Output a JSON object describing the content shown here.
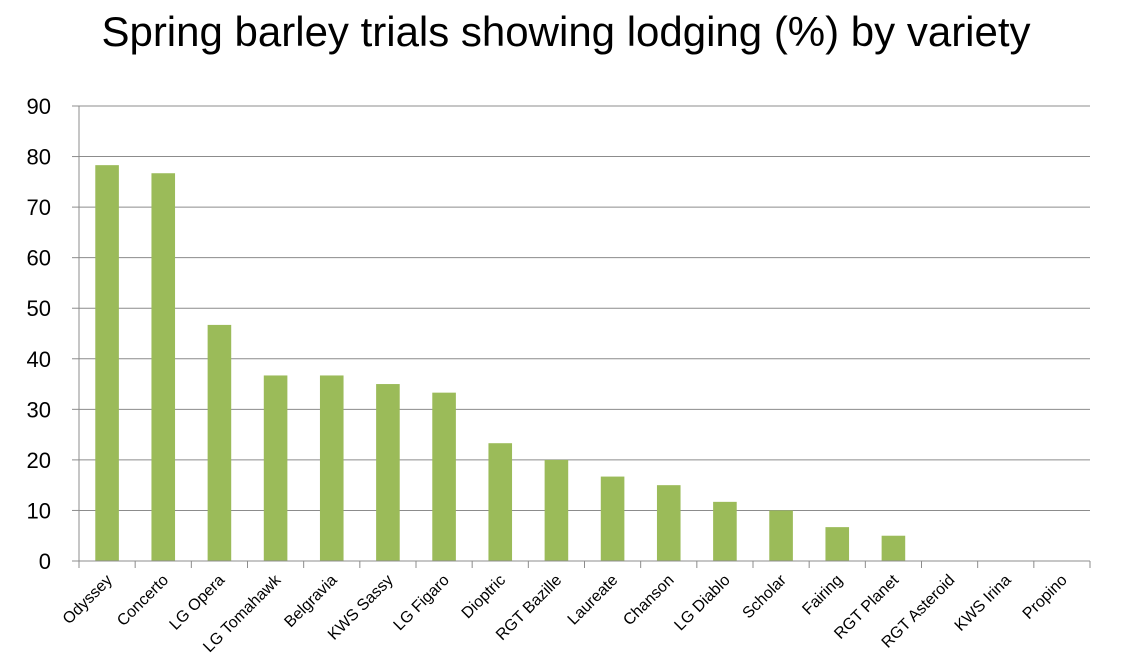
{
  "chart_data": {
    "type": "bar",
    "title": "Spring barley trials showing lodging (%) by variety",
    "xlabel": "",
    "ylabel": "",
    "ylim": [
      0,
      90
    ],
    "yticks": [
      0,
      10,
      20,
      30,
      40,
      50,
      60,
      70,
      80,
      90
    ],
    "grid": true,
    "legend": "none",
    "bar_color": "#9BBB59",
    "categories": [
      "Odyssey",
      "Concerto",
      "LG Opera",
      "LG Tomahawk",
      "Belgravia",
      "KWS Sassy",
      "LG Figaro",
      "Dioptric",
      "RGT Bazille",
      "Laureate",
      "Chanson",
      "LG Diablo",
      "Scholar",
      "Fairing",
      "RGT Planet",
      "RGT Asteroid",
      "KWS Irina",
      "Propino"
    ],
    "values": [
      78.3,
      76.7,
      46.7,
      36.7,
      36.7,
      35.0,
      33.3,
      23.3,
      20.0,
      16.7,
      15.0,
      11.7,
      10.0,
      6.7,
      5.0,
      0,
      0,
      0
    ]
  }
}
